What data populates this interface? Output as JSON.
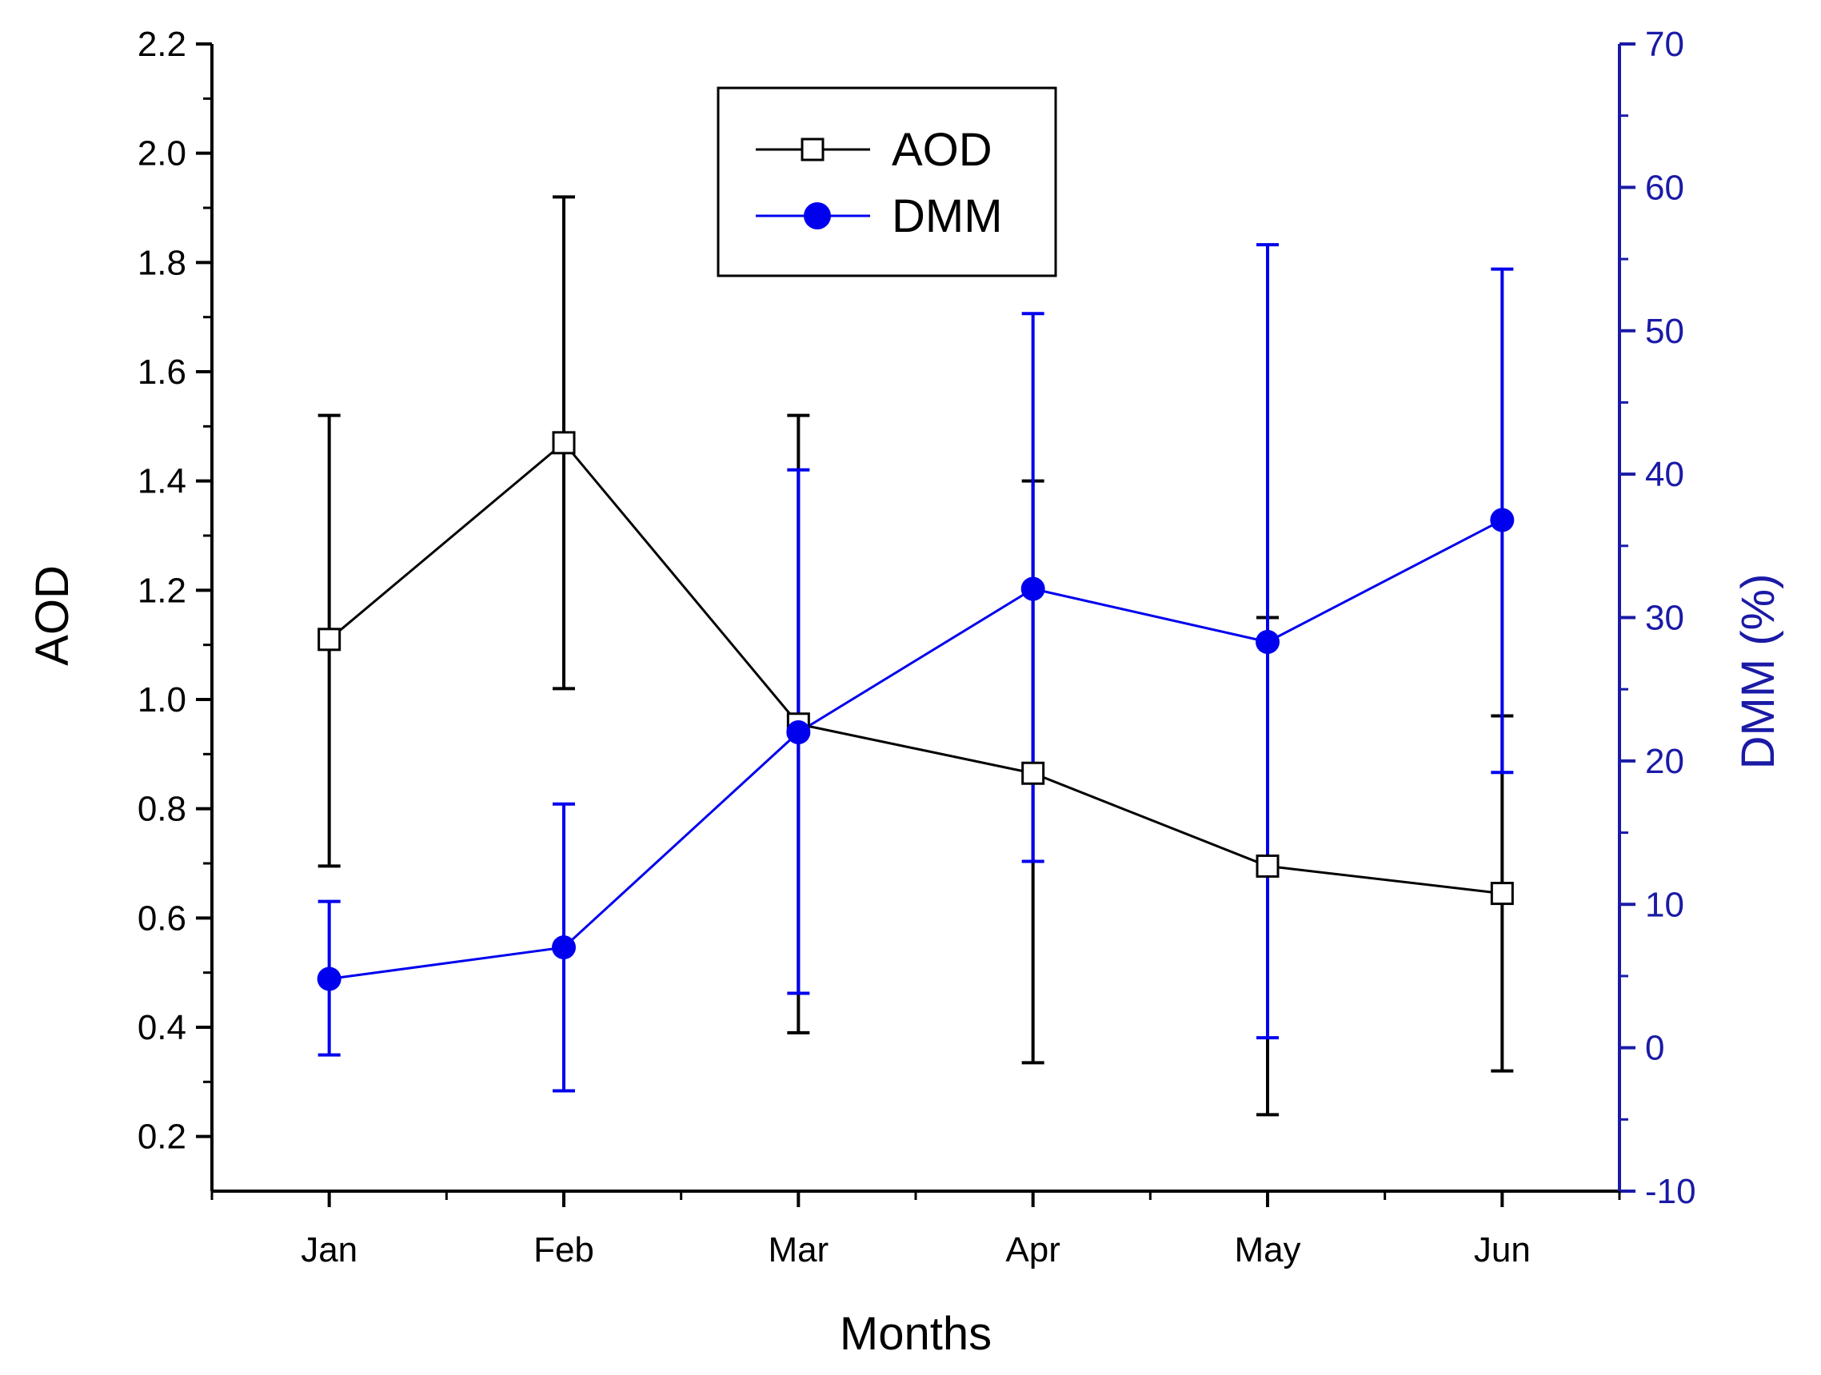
{
  "chart_data": {
    "type": "line",
    "xlabel": "Months",
    "categories": [
      "Jan",
      "Feb",
      "Mar",
      "Apr",
      "May",
      "Jun"
    ],
    "y_left": {
      "label": "AOD",
      "range": [
        0.1,
        2.2
      ],
      "ticks": [
        0.2,
        0.4,
        0.6,
        0.8,
        1.0,
        1.2,
        1.4,
        1.6,
        1.8,
        2.0,
        2.2
      ],
      "tick_labels": [
        "0.2",
        "0.4",
        "0.6",
        "0.8",
        "1.0",
        "1.2",
        "1.4",
        "1.6",
        "1.8",
        "2.0",
        "2.2"
      ],
      "color": "#000000"
    },
    "y_right": {
      "label": "DMM (%)",
      "range": [
        -10,
        70
      ],
      "ticks": [
        -10,
        0,
        10,
        20,
        30,
        40,
        50,
        60,
        70
      ],
      "tick_labels": [
        "-10",
        "0",
        "10",
        "20",
        "30",
        "40",
        "50",
        "60",
        "70"
      ],
      "color": "#1a1aa6"
    },
    "series": [
      {
        "name": "AOD",
        "axis": "left",
        "marker": "open-square",
        "color": "#000000",
        "values": [
          1.11,
          1.47,
          0.955,
          0.865,
          0.695,
          0.645
        ],
        "err_low": [
          0.695,
          1.02,
          0.39,
          0.335,
          0.24,
          0.32
        ],
        "err_high": [
          1.52,
          1.92,
          1.52,
          1.4,
          1.15,
          0.97
        ]
      },
      {
        "name": "DMM",
        "axis": "right",
        "marker": "filled-circle",
        "color": "#0000ee",
        "values": [
          4.8,
          7.0,
          22.0,
          32.0,
          28.3,
          36.8
        ],
        "err_low": [
          -0.5,
          -3.0,
          3.8,
          13.0,
          0.7,
          19.2
        ],
        "err_high": [
          10.2,
          17.0,
          40.3,
          51.2,
          56.0,
          54.3
        ]
      }
    ],
    "legend": {
      "position": "top-center",
      "entries": [
        "AOD",
        "DMM"
      ]
    }
  }
}
